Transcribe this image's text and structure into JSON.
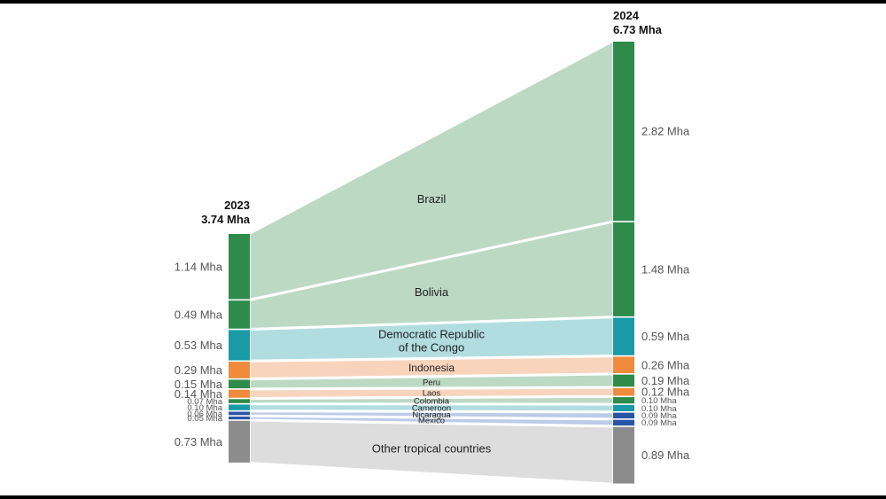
{
  "chart_data": {
    "type": "sankey",
    "columns": [
      {
        "year": "2023",
        "total": "3.74 Mha"
      },
      {
        "year": "2024",
        "total": "6.73 Mha"
      }
    ],
    "flows": [
      {
        "name": "Brazil",
        "v2023": 1.14,
        "v2024": 2.82,
        "label2023": "1.14 Mha",
        "label2024": "2.82 Mha",
        "bar_color": "#2e8b4a",
        "band_color": "#bcd9c4"
      },
      {
        "name": "Bolivia",
        "v2023": 0.49,
        "v2024": 1.48,
        "label2023": "0.49 Mha",
        "label2024": "1.48 Mha",
        "bar_color": "#2e8b4a",
        "band_color": "#bcd9c4"
      },
      {
        "name": "Democratic Republic of the Congo",
        "v2023": 0.53,
        "v2024": 0.59,
        "label2023": "0.53 Mha",
        "label2024": "0.59 Mha",
        "bar_color": "#1a9aa6",
        "band_color": "#b1dde1"
      },
      {
        "name": "Indonesia",
        "v2023": 0.29,
        "v2024": 0.26,
        "label2023": "0.29 Mha",
        "label2024": "0.26 Mha",
        "bar_color": "#f08a3c",
        "band_color": "#f8d4bd"
      },
      {
        "name": "Peru",
        "v2023": 0.15,
        "v2024": 0.19,
        "label2023": "0.15 Mha",
        "label2024": "0.19 Mha",
        "bar_color": "#2e8b4a",
        "band_color": "#bcd9c4"
      },
      {
        "name": "Laos",
        "v2023": 0.14,
        "v2024": 0.12,
        "label2023": "0.14 Mha",
        "label2024": "0.12 Mha",
        "bar_color": "#f08a3c",
        "band_color": "#f8d4bd"
      },
      {
        "name": "Colombia",
        "v2023": 0.07,
        "v2024": 0.1,
        "label2023": "0.07 Mha",
        "label2024": "0.10 Mha",
        "bar_color": "#2e8b4a",
        "band_color": "#bcd9c4"
      },
      {
        "name": "Cameroon",
        "v2023": 0.1,
        "v2024": 0.1,
        "label2023": "0.10 Mha",
        "label2024": "0.10 Mha",
        "bar_color": "#1a9aa6",
        "band_color": "#b1dde1"
      },
      {
        "name": "Nicaragua",
        "v2023": 0.06,
        "v2024": 0.09,
        "label2023": "0.06 Mha",
        "label2024": "0.09 Mha",
        "bar_color": "#2a55a5",
        "band_color": "#bccbe8"
      },
      {
        "name": "Mexico",
        "v2023": 0.05,
        "v2024": 0.09,
        "label2023": "0.05 Mha",
        "label2024": "0.09 Mha",
        "bar_color": "#2a55a5",
        "band_color": "#bccbe8"
      },
      {
        "name": "Other tropical countries",
        "v2023": 0.73,
        "v2024": 0.89,
        "label2023": "0.73 Mha",
        "label2024": "0.89 Mha",
        "bar_color": "#8c8c8c",
        "band_color": "#dddddd"
      }
    ]
  }
}
